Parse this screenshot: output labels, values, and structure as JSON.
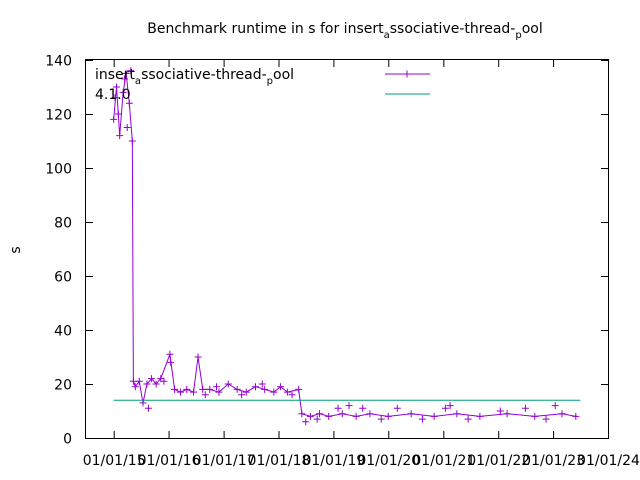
{
  "chart_data": {
    "type": "line",
    "title": {
      "a": "Benchmark runtime in s for insert",
      "b": "a",
      "c": "ssociative-thread-",
      "d": "p",
      "e": "ool"
    },
    "xlabel": "",
    "ylabel": "s",
    "ylim": [
      0,
      140
    ],
    "yticks": [
      "0",
      "20",
      "40",
      "60",
      "80",
      "100",
      "120",
      "140"
    ],
    "xticks": [
      "01/01/15",
      "01/01/16",
      "01/01/17",
      "01/01/18",
      "01/01/19",
      "01/01/20",
      "01/01/21",
      "01/01/22",
      "01/01/23",
      "01/01/24"
    ],
    "grid": false,
    "legend_position": "top-left",
    "series": [
      {
        "name": {
          "a": "insert",
          "b": "a",
          "c": "ssociative-thread-",
          "d": "p",
          "e": "ool"
        },
        "color": "#9400d3",
        "marker": "plus",
        "points": [
          [
            "2015-01-01",
            118
          ],
          [
            "2015-01-20",
            130
          ],
          [
            "2015-02-10",
            112
          ],
          [
            "2015-03-05",
            128
          ],
          [
            "2015-03-25",
            135
          ],
          [
            "2015-04-15",
            124
          ],
          [
            "2015-05-05",
            110
          ],
          [
            "2015-05-12",
            21
          ],
          [
            "2015-05-25",
            19
          ],
          [
            "2015-06-20",
            21
          ],
          [
            "2015-07-15",
            13
          ],
          [
            "2015-08-10",
            20
          ],
          [
            "2015-09-10",
            22
          ],
          [
            "2015-10-10",
            20
          ],
          [
            "2015-11-10",
            22
          ],
          [
            "2016-01-10",
            31
          ],
          [
            "2016-02-10",
            18
          ],
          [
            "2016-03-20",
            17
          ],
          [
            "2016-05-01",
            18
          ],
          [
            "2016-06-15",
            17
          ],
          [
            "2016-07-15",
            30
          ],
          [
            "2016-08-15",
            18
          ],
          [
            "2016-10-01",
            18
          ],
          [
            "2016-12-01",
            17
          ],
          [
            "2017-02-01",
            20
          ],
          [
            "2017-04-01",
            18
          ],
          [
            "2017-06-01",
            17
          ],
          [
            "2017-08-01",
            19
          ],
          [
            "2017-10-01",
            18
          ],
          [
            "2017-12-01",
            17
          ],
          [
            "2018-01-15",
            19
          ],
          [
            "2018-03-01",
            17
          ],
          [
            "2018-05-15",
            18
          ],
          [
            "2018-06-05",
            9
          ],
          [
            "2018-08-01",
            8
          ],
          [
            "2018-10-01",
            9
          ],
          [
            "2018-12-01",
            8
          ],
          [
            "2019-03-01",
            9
          ],
          [
            "2019-06-01",
            8
          ],
          [
            "2019-09-01",
            9
          ],
          [
            "2020-01-01",
            8
          ],
          [
            "2020-06-01",
            9
          ],
          [
            "2020-11-01",
            8
          ],
          [
            "2021-04-01",
            9
          ],
          [
            "2021-09-01",
            8
          ],
          [
            "2022-03-01",
            9
          ],
          [
            "2022-09-01",
            8
          ],
          [
            "2023-03-01",
            9
          ],
          [
            "2023-06-01",
            8
          ]
        ],
        "extra_points": [
          [
            "2015-01-10",
            126
          ],
          [
            "2015-02-01",
            120
          ],
          [
            "2015-03-15",
            133
          ],
          [
            "2015-04-01",
            115
          ],
          [
            "2015-04-25",
            136
          ],
          [
            "2015-08-20",
            11
          ],
          [
            "2015-12-01",
            21
          ],
          [
            "2016-01-15",
            28
          ],
          [
            "2016-09-01",
            16
          ],
          [
            "2016-11-15",
            19
          ],
          [
            "2017-05-01",
            16
          ],
          [
            "2017-09-15",
            20
          ],
          [
            "2018-04-01",
            16
          ],
          [
            "2018-07-01",
            6
          ],
          [
            "2018-09-15",
            7
          ],
          [
            "2019-02-01",
            11
          ],
          [
            "2019-04-15",
            12
          ],
          [
            "2019-07-15",
            11
          ],
          [
            "2019-11-15",
            7
          ],
          [
            "2020-03-01",
            11
          ],
          [
            "2020-08-15",
            7
          ],
          [
            "2021-01-15",
            11
          ],
          [
            "2021-02-15",
            12
          ],
          [
            "2021-06-15",
            7
          ],
          [
            "2022-01-15",
            10
          ],
          [
            "2022-07-01",
            11
          ],
          [
            "2022-11-15",
            7
          ],
          [
            "2023-01-15",
            12
          ]
        ]
      },
      {
        "name": {
          "a": "4.1.0"
        },
        "color": "#009e73",
        "marker": "none",
        "points": [
          [
            "2015-01-01",
            14
          ],
          [
            "2023-07-01",
            14
          ]
        ]
      }
    ]
  }
}
